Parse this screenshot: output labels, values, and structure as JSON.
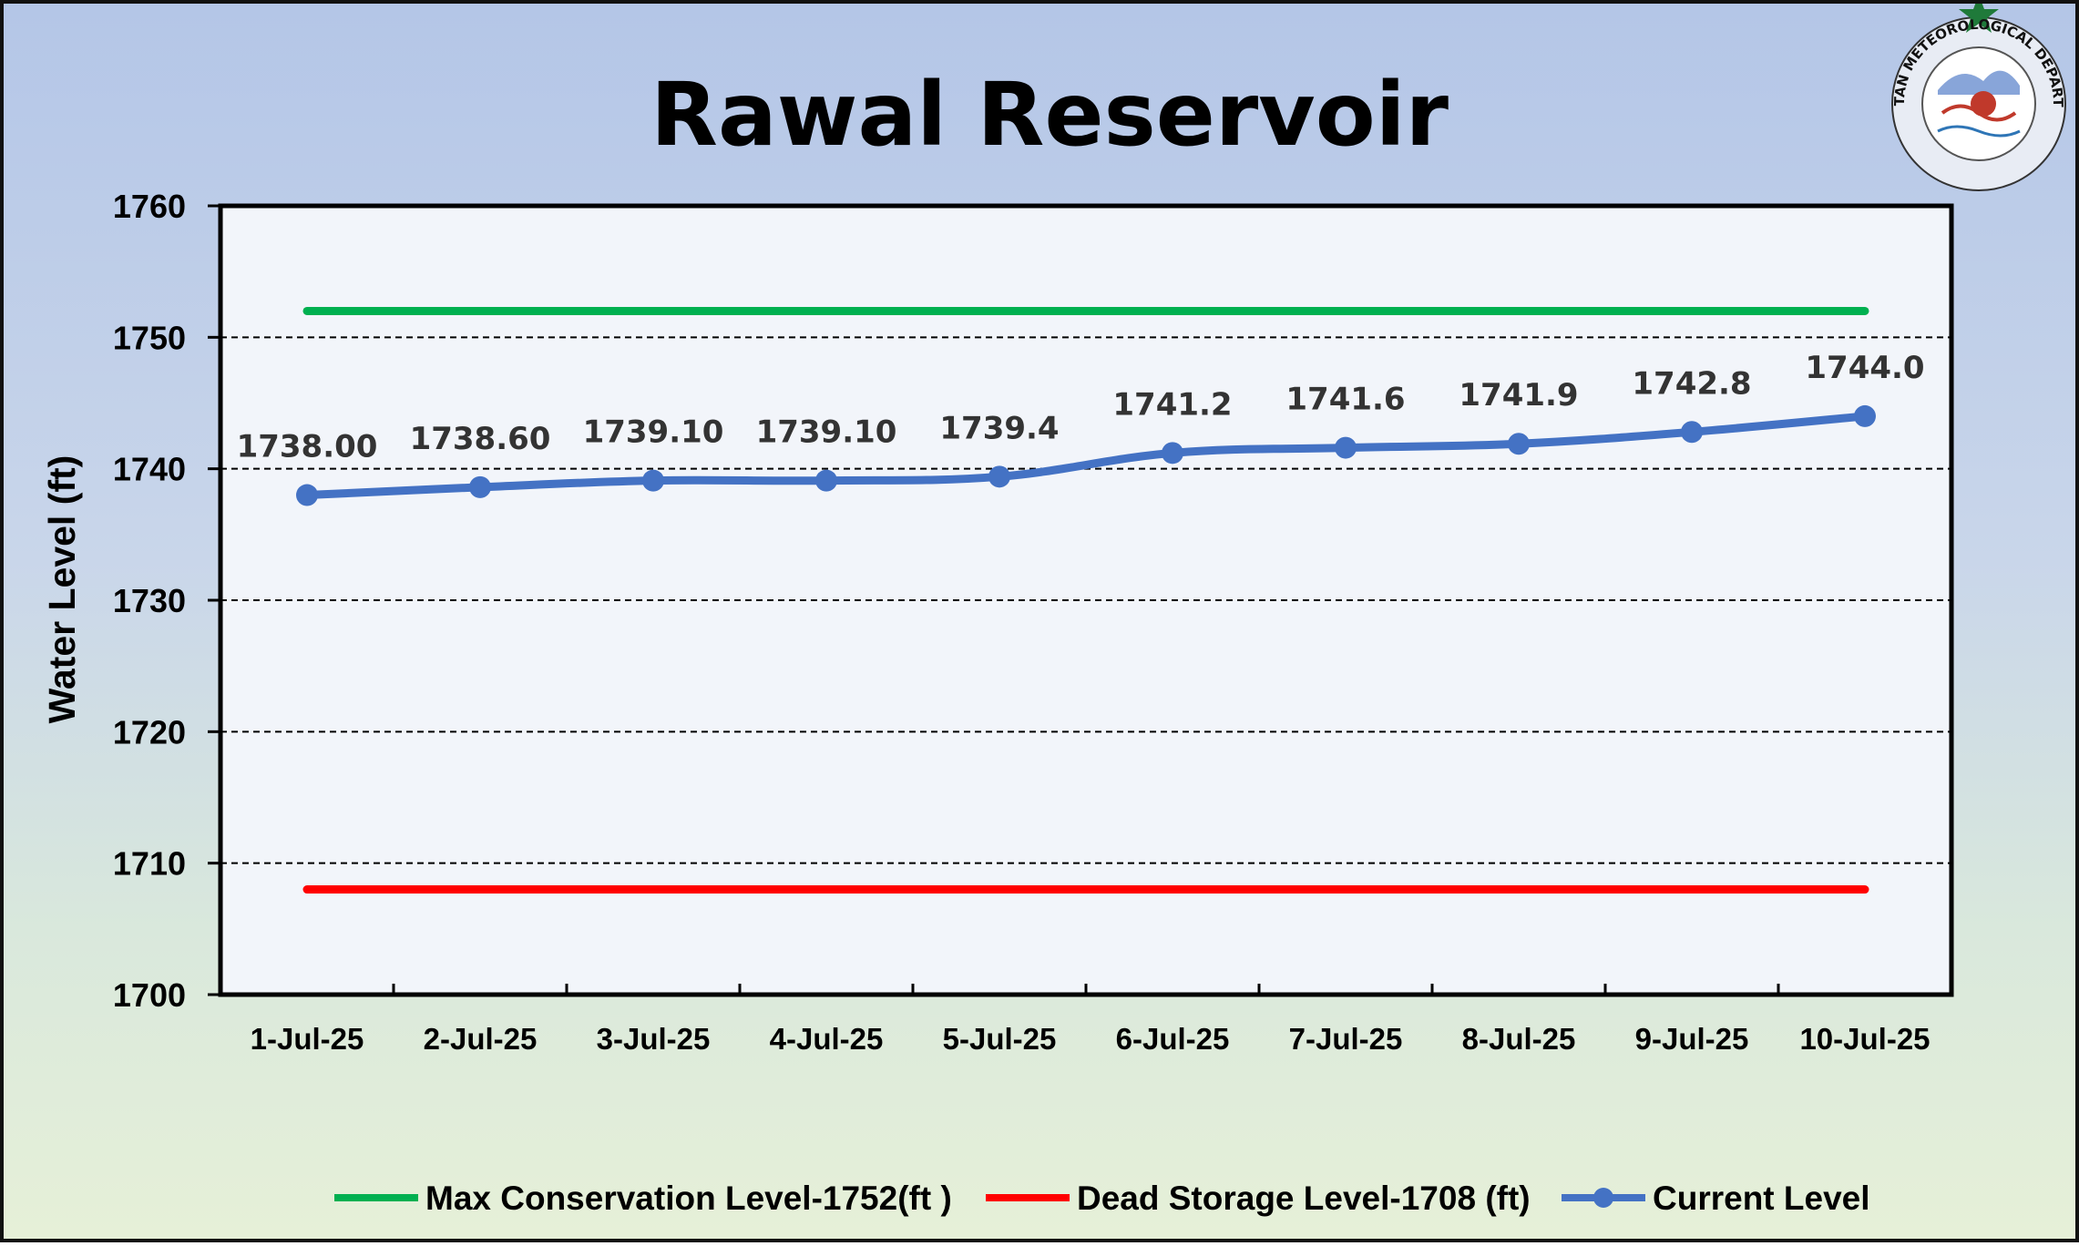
{
  "logo": {
    "text": "PAKISTAN METEOROLOGICAL DEPARTMENT"
  },
  "colors": {
    "max_line": "#00b050",
    "dead_line": "#ff0000",
    "current_line": "#4472c4",
    "grid": "#000000",
    "plot_bg": "#f2f5fa"
  },
  "chart_data": {
    "type": "line",
    "title": "Rawal Reservoir",
    "xlabel": "",
    "ylabel": "Water Level (ft)",
    "ylim": [
      1700,
      1760
    ],
    "yticks": [
      1700,
      1710,
      1720,
      1730,
      1740,
      1750,
      1760
    ],
    "categories": [
      "1-Jul-25",
      "2-Jul-25",
      "3-Jul-25",
      "4-Jul-25",
      "5-Jul-25",
      "6-Jul-25",
      "7-Jul-25",
      "8-Jul-25",
      "9-Jul-25",
      "10-Jul-25"
    ],
    "grid": "horizontal dashed",
    "legend_position": "bottom",
    "series": [
      {
        "name": "Max Conservation Level-1752(ft )",
        "values": [
          1752,
          1752,
          1752,
          1752,
          1752,
          1752,
          1752,
          1752,
          1752,
          1752
        ],
        "color": "#00b050",
        "markers": false
      },
      {
        "name": "Dead Storage Level-1708 (ft)",
        "values": [
          1708,
          1708,
          1708,
          1708,
          1708,
          1708,
          1708,
          1708,
          1708,
          1708
        ],
        "color": "#ff0000",
        "markers": false
      },
      {
        "name": "Current Level",
        "values": [
          1738.0,
          1738.6,
          1739.1,
          1739.1,
          1739.4,
          1741.2,
          1741.6,
          1741.9,
          1742.8,
          1744.0
        ],
        "data_labels": [
          "1738.00",
          "1738.60",
          "1739.10",
          "1739.10",
          "1739.4",
          "1741.2",
          "1741.6",
          "1741.9",
          "1742.8",
          "1744.0"
        ],
        "color": "#4472c4",
        "markers": true
      }
    ]
  }
}
